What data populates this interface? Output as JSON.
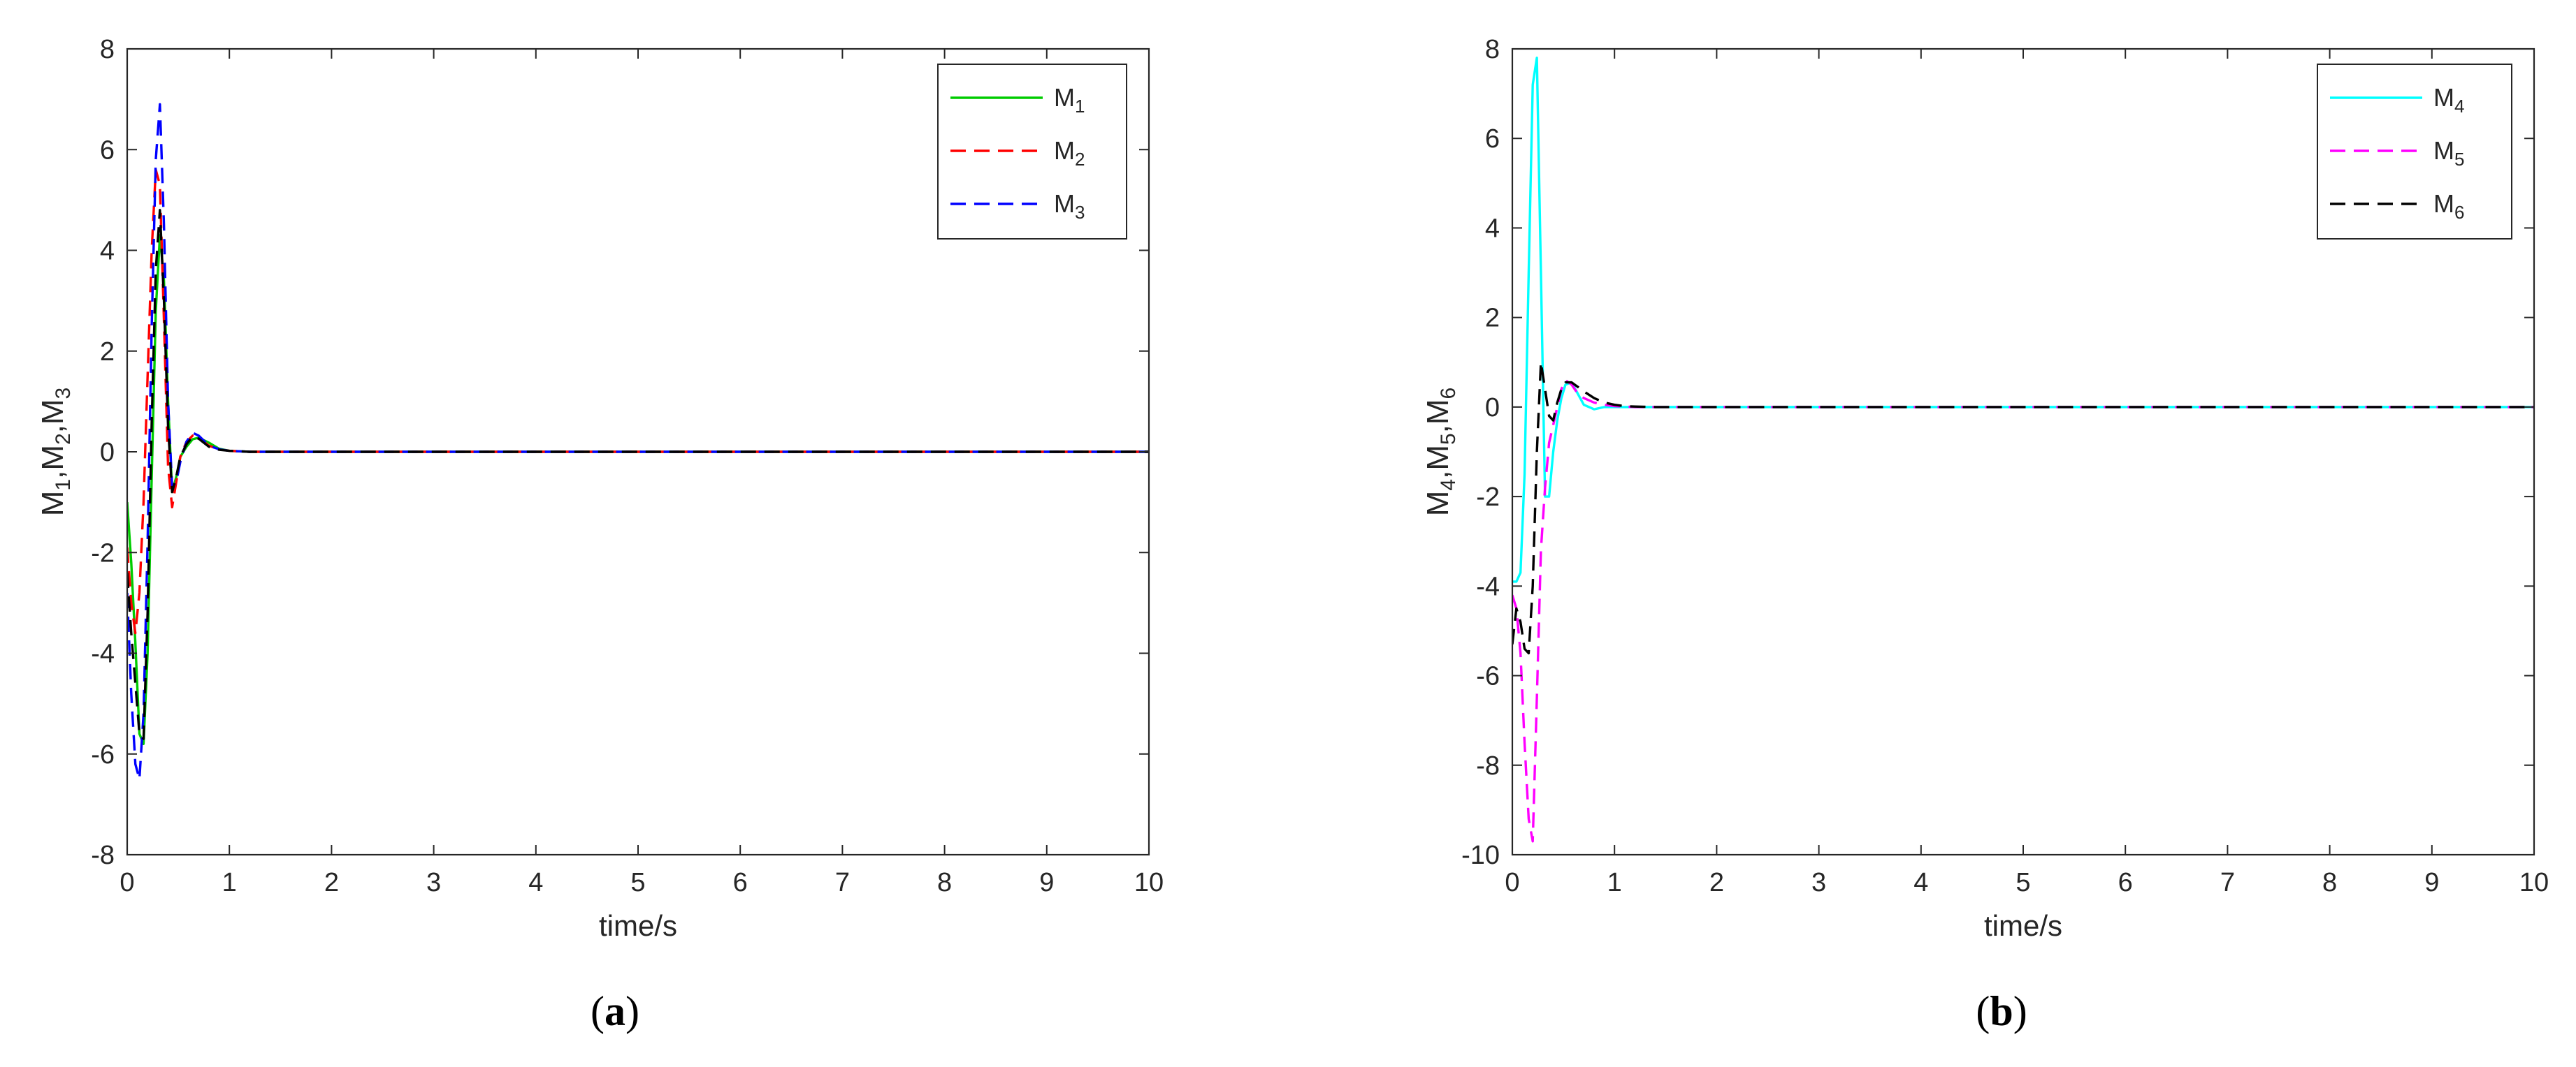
{
  "chart_data": [
    {
      "type": "line",
      "panel_label": "a",
      "xlabel": "time/s",
      "ylabel": {
        "parts": [
          [
            "M",
            "1"
          ],
          [
            "M",
            "2"
          ],
          [
            "M",
            "3"
          ]
        ],
        "separator": ","
      },
      "xlim": [
        0,
        10
      ],
      "ylim": [
        -8,
        8
      ],
      "xticks": [
        0,
        1,
        2,
        3,
        4,
        5,
        6,
        7,
        8,
        9,
        10
      ],
      "yticks": [
        -8,
        -6,
        -4,
        -2,
        0,
        2,
        4,
        6,
        8
      ],
      "grid": false,
      "legend_position": "top-right",
      "series": [
        {
          "name": "M",
          "name_sub": "1",
          "color": "#00cc00",
          "dash": "solid",
          "x": [
            0,
            0.04,
            0.08,
            0.12,
            0.16,
            0.2,
            0.24,
            0.28,
            0.32,
            0.36,
            0.4,
            0.44,
            0.48,
            0.52,
            0.58,
            0.64,
            0.7,
            0.8,
            0.9,
            1.0,
            1.1,
            1.2,
            1.4,
            1.8,
            10
          ],
          "y": [
            -1.0,
            -2.2,
            -3.8,
            -5.6,
            -5.8,
            -4.0,
            -0.5,
            2.8,
            4.3,
            3.4,
            1.0,
            -0.8,
            -0.5,
            -0.1,
            0.1,
            0.25,
            0.28,
            0.18,
            0.06,
            0.02,
            0.01,
            0,
            0,
            0,
            0
          ]
        },
        {
          "name": "M",
          "name_sub": "2",
          "color": "#ff0000",
          "dash": "dashed",
          "x": [
            0,
            0.04,
            0.08,
            0.12,
            0.16,
            0.2,
            0.24,
            0.28,
            0.32,
            0.36,
            0.4,
            0.44,
            0.48,
            0.52,
            0.58,
            0.64,
            0.7,
            0.8,
            0.9,
            1.0,
            1.1,
            1.2,
            1.4,
            1.8,
            10
          ],
          "y": [
            -1.9,
            -3.0,
            -3.6,
            -2.8,
            -1.0,
            1.5,
            4.0,
            5.6,
            5.3,
            2.6,
            -0.3,
            -1.1,
            -0.6,
            -0.1,
            0.2,
            0.32,
            0.28,
            0.12,
            0.05,
            0.02,
            0.01,
            0,
            0,
            0,
            0
          ]
        },
        {
          "name": "M",
          "name_sub": "3",
          "color": "#0000ff",
          "dash": "dashed",
          "x": [
            0,
            0.04,
            0.08,
            0.12,
            0.16,
            0.2,
            0.24,
            0.28,
            0.32,
            0.36,
            0.4,
            0.44,
            0.48,
            0.52,
            0.58,
            0.64,
            0.7,
            0.8,
            0.9,
            1.0,
            1.1,
            1.2,
            1.4,
            1.8,
            10
          ],
          "y": [
            -2.8,
            -4.8,
            -6.2,
            -6.5,
            -5.2,
            -1.8,
            2.5,
            5.8,
            6.9,
            4.5,
            1.0,
            -0.7,
            -0.6,
            -0.2,
            0.2,
            0.38,
            0.32,
            0.12,
            0.05,
            0.02,
            0.01,
            0,
            0,
            0,
            0
          ]
        },
        {
          "name": "",
          "color": "#000000",
          "dash": "dashed",
          "x": [
            0,
            0.04,
            0.08,
            0.12,
            0.16,
            0.2,
            0.24,
            0.28,
            0.32,
            0.36,
            0.4,
            0.44,
            0.48,
            0.52,
            0.58,
            0.64,
            0.7,
            0.8,
            0.9,
            1.0,
            1.1,
            1.2,
            1.4,
            1.8,
            10
          ],
          "y": [
            -2.4,
            -3.6,
            -4.6,
            -5.6,
            -5.7,
            -3.2,
            0.6,
            3.6,
            4.8,
            3.0,
            0.5,
            -0.8,
            -0.5,
            -0.1,
            0.15,
            0.3,
            0.26,
            0.1,
            0.04,
            0.02,
            0.01,
            0,
            0,
            0,
            0
          ]
        }
      ]
    },
    {
      "type": "line",
      "panel_label": "b",
      "xlabel": "time/s",
      "ylabel": {
        "parts": [
          [
            "M",
            "4"
          ],
          [
            "M",
            "5"
          ],
          [
            "M",
            "6"
          ]
        ],
        "separator": ","
      },
      "xlim": [
        0,
        10
      ],
      "ylim": [
        -10,
        8
      ],
      "xticks": [
        0,
        1,
        2,
        3,
        4,
        5,
        6,
        7,
        8,
        9,
        10
      ],
      "yticks": [
        -10,
        -8,
        -6,
        -4,
        -2,
        0,
        2,
        4,
        6,
        8
      ],
      "grid": false,
      "legend_position": "top-right",
      "series": [
        {
          "name": "M",
          "name_sub": "4",
          "color": "#00ffff",
          "dash": "solid",
          "x": [
            0,
            0.04,
            0.08,
            0.12,
            0.16,
            0.2,
            0.24,
            0.28,
            0.32,
            0.36,
            0.4,
            0.44,
            0.48,
            0.52,
            0.58,
            0.64,
            0.7,
            0.8,
            0.9,
            1.0,
            1.1,
            1.2,
            1.4,
            1.8,
            10
          ],
          "y": [
            -3.9,
            -3.9,
            -3.7,
            -1.5,
            3.0,
            7.2,
            7.8,
            3.0,
            -2.0,
            -2.0,
            -1.0,
            -0.3,
            0.2,
            0.5,
            0.55,
            0.3,
            0.05,
            -0.05,
            0,
            0,
            0,
            0,
            0,
            0,
            0
          ]
        },
        {
          "name": "M",
          "name_sub": "5",
          "color": "#ff00ff",
          "dash": "dashed",
          "x": [
            0,
            0.04,
            0.08,
            0.12,
            0.16,
            0.2,
            0.24,
            0.28,
            0.32,
            0.36,
            0.4,
            0.44,
            0.48,
            0.52,
            0.58,
            0.64,
            0.7,
            0.8,
            0.9,
            1.0,
            1.1,
            1.2,
            1.4,
            1.8,
            10
          ],
          "y": [
            -4.2,
            -4.5,
            -5.5,
            -7.5,
            -9.2,
            -9.7,
            -6.5,
            -3.2,
            -1.8,
            -0.8,
            -0.4,
            0.0,
            0.4,
            0.6,
            0.5,
            0.3,
            0.2,
            0.1,
            0.05,
            0.02,
            0.01,
            0,
            0,
            0,
            0
          ]
        },
        {
          "name": "M",
          "name_sub": "6",
          "color": "#000000",
          "dash": "dashed",
          "x": [
            0,
            0.04,
            0.08,
            0.12,
            0.16,
            0.2,
            0.24,
            0.28,
            0.32,
            0.36,
            0.4,
            0.44,
            0.48,
            0.52,
            0.58,
            0.64,
            0.7,
            0.8,
            0.9,
            1.0,
            1.1,
            1.2,
            1.4,
            1.8,
            10
          ],
          "y": [
            -5.3,
            -4.5,
            -4.8,
            -5.4,
            -5.5,
            -4.0,
            -1.0,
            1.0,
            0.4,
            -0.2,
            -0.3,
            0.1,
            0.4,
            0.55,
            0.55,
            0.45,
            0.35,
            0.2,
            0.1,
            0.05,
            0.02,
            0.01,
            0,
            0,
            0
          ]
        }
      ]
    }
  ]
}
